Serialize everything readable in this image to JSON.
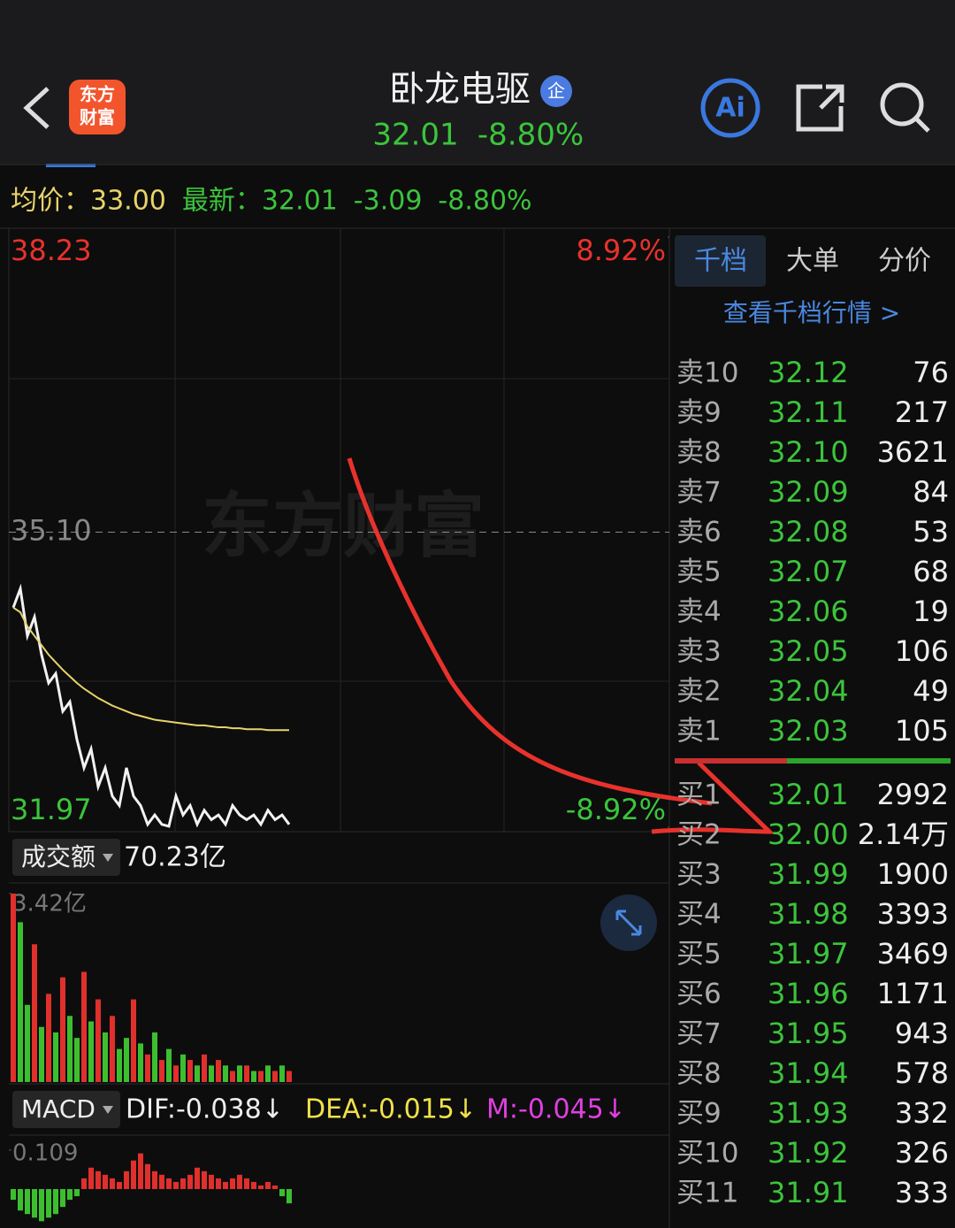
{
  "header": {
    "title": "卧龙电驱",
    "badge": "企",
    "logo": [
      "东方",
      "财富"
    ],
    "price": "32.01",
    "change_pct": "-8.80%",
    "ai": "Ai"
  },
  "info": {
    "avg_label": "均价：",
    "avg": "33.00",
    "last_label": "最新：",
    "last": "32.01",
    "change": "-3.09",
    "change_pct": "-8.80%"
  },
  "chart": {
    "type": "line",
    "watermark": "东方财富",
    "ylim": [
      31.97,
      38.23
    ],
    "yticks": [
      31.97,
      {
        "value": 35.1,
        "label": "35.10"
      },
      38.23
    ],
    "y2lim": [
      -8.92,
      8.92
    ],
    "y2ticks": [
      {
        "value": -8.92,
        "label": "-8.92%"
      },
      {
        "value": 8.92,
        "label": "8.92%"
      }
    ],
    "series": [
      {
        "name": "price",
        "color": "#f2f2f2",
        "values": [
          34.3,
          34.5,
          34.0,
          34.2,
          33.8,
          33.5,
          33.6,
          33.2,
          33.3,
          32.9,
          32.6,
          32.8,
          32.4,
          32.6,
          32.3,
          32.2,
          32.6,
          32.3,
          32.2,
          32.0,
          32.1,
          32.0,
          31.98,
          32.3,
          32.1,
          32.2,
          32.0,
          32.15,
          32.05,
          32.1,
          32.0,
          32.2,
          32.1,
          32.05,
          32.1,
          32.0,
          32.15,
          32.05,
          32.1,
          32.0
        ]
      },
      {
        "name": "avg",
        "color": "#e8d36a",
        "values": [
          34.3,
          34.25,
          34.1,
          34.0,
          33.9,
          33.8,
          33.72,
          33.64,
          33.57,
          33.5,
          33.44,
          33.39,
          33.34,
          33.3,
          33.26,
          33.23,
          33.2,
          33.17,
          33.15,
          33.13,
          33.11,
          33.1,
          33.09,
          33.08,
          33.07,
          33.06,
          33.05,
          33.05,
          33.04,
          33.03,
          33.03,
          33.02,
          33.02,
          33.01,
          33.01,
          33.01,
          33.0,
          33.0,
          33.0,
          33.0
        ]
      }
    ]
  },
  "volume": {
    "label": "成交额",
    "total": "70.23亿",
    "ylim": [
      0,
      3.42
    ],
    "yticks": [
      {
        "value": 3.42,
        "label": "3.42亿"
      }
    ],
    "series": [
      {
        "color": "#e0302c",
        "values": [
          3.42,
          null,
          null,
          2.5,
          null,
          1.6,
          null,
          1.9,
          null,
          null,
          2.0,
          null,
          1.5,
          null,
          1.2,
          null,
          null,
          1.5,
          null,
          0.5,
          null,
          0.4,
          null,
          0.3,
          null,
          0.4,
          null,
          0.5,
          null,
          0.4,
          null,
          0.2,
          null,
          0.3,
          null,
          0.2,
          null,
          0.2,
          null,
          0.2
        ]
      },
      {
        "color": "#3cbf2f",
        "values": [
          null,
          2.9,
          1.4,
          null,
          1.0,
          null,
          0.9,
          null,
          1.2,
          0.8,
          null,
          1.1,
          null,
          0.9,
          null,
          0.6,
          0.8,
          null,
          0.7,
          null,
          0.9,
          null,
          0.6,
          null,
          0.5,
          null,
          0.3,
          null,
          0.3,
          null,
          0.3,
          null,
          0.3,
          null,
          0.2,
          null,
          0.3,
          null,
          0.3,
          null
        ]
      }
    ]
  },
  "macd": {
    "label": "MACD",
    "dif": "DIF:-0.038↓",
    "dea": "DEA:-0.015↓",
    "m": "M:-0.045↓",
    "ylim": [
      -0.109,
      0.109
    ],
    "yticks": [
      {
        "value": 0.109,
        "label": "0.109"
      }
    ],
    "values": [
      -0.03,
      -0.06,
      -0.07,
      -0.08,
      -0.09,
      -0.08,
      -0.07,
      -0.05,
      -0.03,
      -0.02,
      0.03,
      0.06,
      0.05,
      0.04,
      0.03,
      0.02,
      0.05,
      0.08,
      0.1,
      0.07,
      0.05,
      0.04,
      0.03,
      0.02,
      0.03,
      0.04,
      0.06,
      0.05,
      0.04,
      0.03,
      0.02,
      0.03,
      0.04,
      0.03,
      0.02,
      0.01,
      0.02,
      0.01,
      -0.02,
      -0.04
    ]
  },
  "book": {
    "tabs": [
      "千档",
      "大单",
      "分价"
    ],
    "link": "查看千档行情 >",
    "sell": [
      [
        "卖10",
        "32.12",
        "76"
      ],
      [
        "卖9",
        "32.11",
        "217"
      ],
      [
        "卖8",
        "32.10",
        "3621"
      ],
      [
        "卖7",
        "32.09",
        "84"
      ],
      [
        "卖6",
        "32.08",
        "53"
      ],
      [
        "卖5",
        "32.07",
        "68"
      ],
      [
        "卖4",
        "32.06",
        "19"
      ],
      [
        "卖3",
        "32.05",
        "106"
      ],
      [
        "卖2",
        "32.04",
        "49"
      ],
      [
        "卖1",
        "32.03",
        "105"
      ]
    ],
    "buy": [
      [
        "买1",
        "32.01",
        "2992"
      ],
      [
        "买2",
        "32.00",
        "2.14万"
      ],
      [
        "买3",
        "31.99",
        "1900"
      ],
      [
        "买4",
        "31.98",
        "3393"
      ],
      [
        "买5",
        "31.97",
        "3469"
      ],
      [
        "买6",
        "31.96",
        "1171"
      ],
      [
        "买7",
        "31.95",
        "943"
      ],
      [
        "买8",
        "31.94",
        "578"
      ],
      [
        "买9",
        "31.93",
        "332"
      ],
      [
        "买10",
        "31.92",
        "326"
      ],
      [
        "买11",
        "31.91",
        "333"
      ]
    ]
  }
}
